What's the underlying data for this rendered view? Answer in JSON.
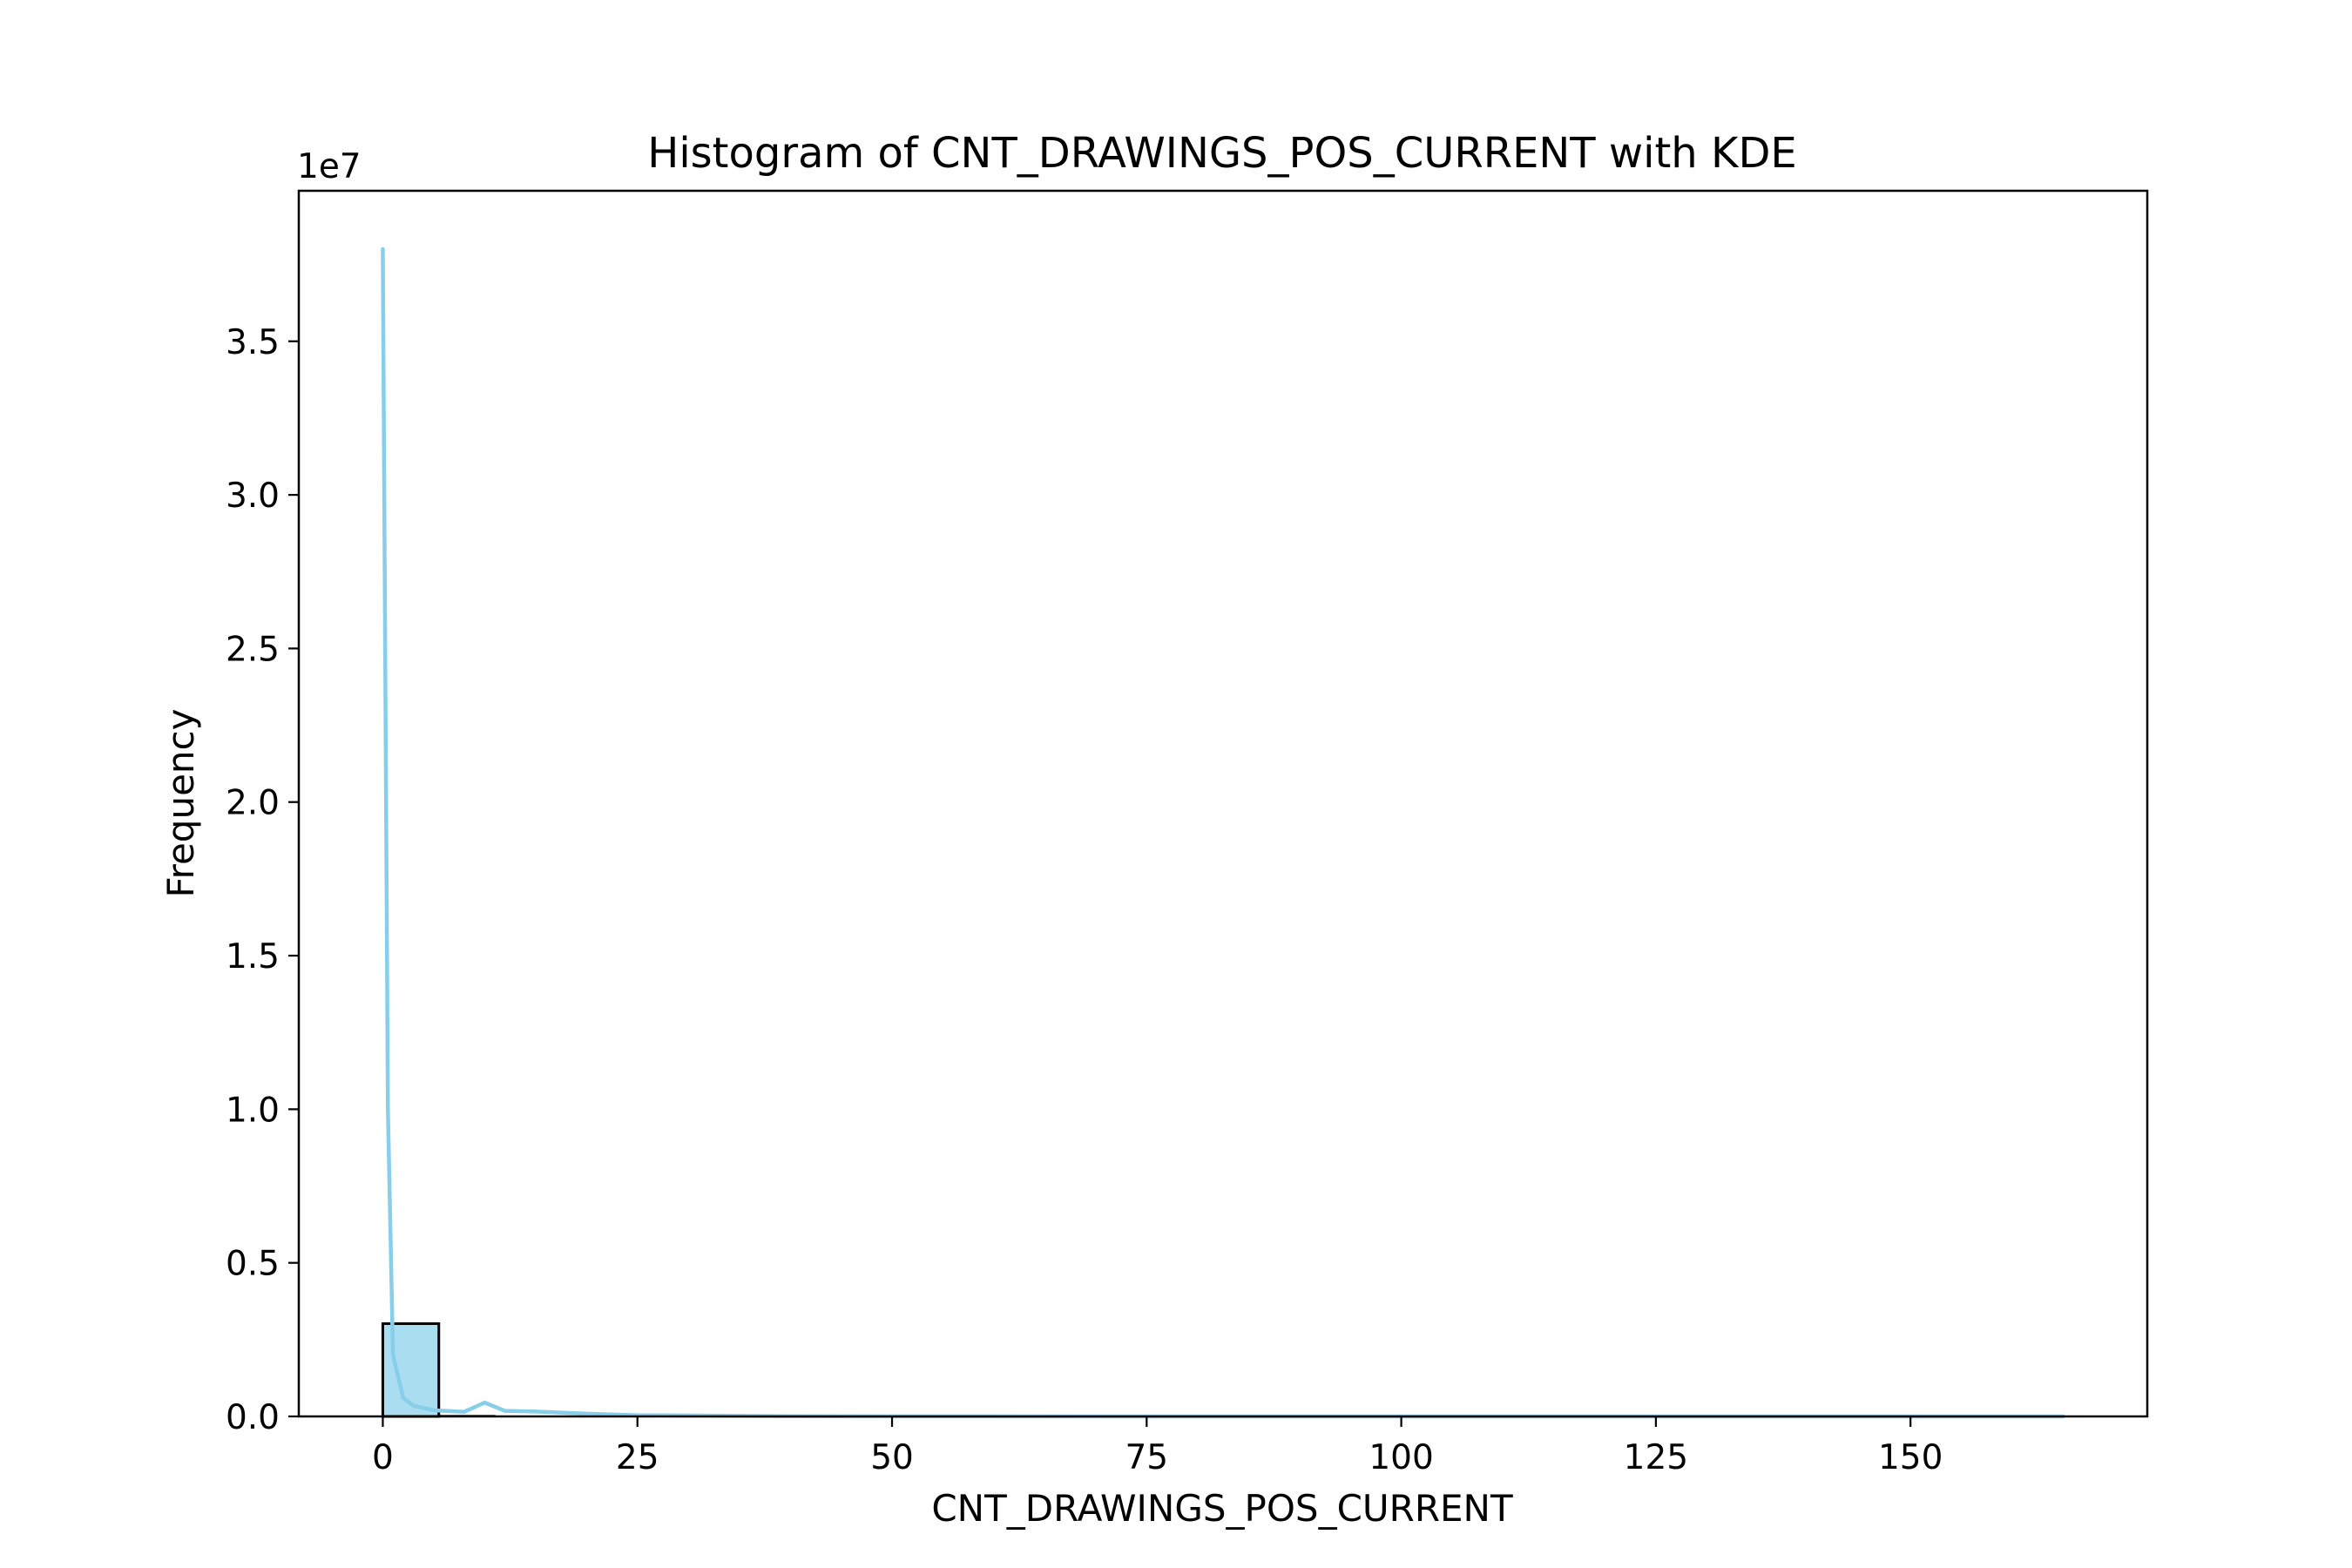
{
  "chart_data": {
    "type": "bar",
    "title": "Histogram of CNT_DRAWINGS_POS_CURRENT with KDE",
    "xlabel": "CNT_DRAWINGS_POS_CURRENT",
    "ylabel": "Frequency",
    "y_offset_text": "1e7",
    "y_multiplier": 10000000,
    "xlim": [
      -8.25,
      173.25
    ],
    "ylim": [
      0,
      39900000
    ],
    "x_ticks": [
      0,
      25,
      50,
      75,
      100,
      125,
      150
    ],
    "y_ticks": [
      0,
      5000000,
      10000000,
      15000000,
      20000000,
      25000000,
      30000000,
      35000000
    ],
    "y_tick_labels": [
      "0.0",
      "0.5",
      "1.0",
      "1.5",
      "2.0",
      "2.5",
      "3.0",
      "3.5"
    ],
    "grid": false,
    "bins": [
      {
        "x0": 0.0,
        "x1": 5.5,
        "count": 3020000
      },
      {
        "x0": 5.5,
        "x1": 11.0,
        "count": 30000
      },
      {
        "x0": 11.0,
        "x1": 16.5,
        "count": 8000
      },
      {
        "x0": 16.5,
        "x1": 22.0,
        "count": 3000
      },
      {
        "x0": 22.0,
        "x1": 27.5,
        "count": 1000
      },
      {
        "x0": 27.5,
        "x1": 33.0,
        "count": 400
      },
      {
        "x0": 33.0,
        "x1": 38.5,
        "count": 150
      },
      {
        "x0": 38.5,
        "x1": 44.0,
        "count": 60
      },
      {
        "x0": 44.0,
        "x1": 49.5,
        "count": 25
      },
      {
        "x0": 49.5,
        "x1": 55.0,
        "count": 10
      },
      {
        "x0": 55.0,
        "x1": 60.5,
        "count": 5
      },
      {
        "x0": 60.5,
        "x1": 66.0,
        "count": 3
      },
      {
        "x0": 66.0,
        "x1": 71.5,
        "count": 2
      },
      {
        "x0": 71.5,
        "x1": 77.0,
        "count": 1
      },
      {
        "x0": 77.0,
        "x1": 82.5,
        "count": 1
      },
      {
        "x0": 82.5,
        "x1": 88.0,
        "count": 1
      },
      {
        "x0": 88.0,
        "x1": 93.5,
        "count": 0
      },
      {
        "x0": 93.5,
        "x1": 99.0,
        "count": 1
      },
      {
        "x0": 99.0,
        "x1": 104.5,
        "count": 0
      },
      {
        "x0": 104.5,
        "x1": 110.0,
        "count": 0
      },
      {
        "x0": 110.0,
        "x1": 115.5,
        "count": 0
      },
      {
        "x0": 115.5,
        "x1": 121.0,
        "count": 0
      },
      {
        "x0": 121.0,
        "x1": 126.5,
        "count": 0
      },
      {
        "x0": 126.5,
        "x1": 132.0,
        "count": 0
      },
      {
        "x0": 132.0,
        "x1": 137.5,
        "count": 0
      },
      {
        "x0": 137.5,
        "x1": 143.0,
        "count": 0
      },
      {
        "x0": 143.0,
        "x1": 148.5,
        "count": 0
      },
      {
        "x0": 148.5,
        "x1": 154.0,
        "count": 0
      },
      {
        "x0": 154.0,
        "x1": 159.5,
        "count": 0
      },
      {
        "x0": 159.5,
        "x1": 165.0,
        "count": 1
      }
    ],
    "kde": {
      "name": "KDE",
      "x": [
        0,
        0.5,
        1,
        2,
        3,
        5,
        8,
        10,
        12,
        15,
        20,
        25,
        40,
        60,
        100,
        165
      ],
      "y": [
        38000000,
        10000000,
        2000000,
        600000,
        350000,
        200000,
        150000,
        450000,
        180000,
        160000,
        90000,
        40000,
        8000,
        2000,
        500,
        100
      ]
    },
    "colors": {
      "bar_fill": "#87ceeb",
      "bar_fill_opacity": 0.7,
      "bar_edge": "#000000",
      "kde_line": "#87ceeb",
      "axis": "#000000"
    }
  }
}
